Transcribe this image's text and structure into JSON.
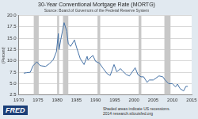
{
  "chart_data": {
    "type": "line",
    "title": "30-Year Conventional Mortgage Rate (MORTG)",
    "subtitle": "Source: Board of Governors of the Federal Reserve System",
    "y_label": "(Percent)",
    "annotations": [
      "FRED",
      "Shaded areas indicate US recessions.",
      "2014 research.stlouisfed.org"
    ],
    "x": [
      1971.3,
      1972.0,
      1973.0,
      1973.7,
      1974.7,
      1975.5,
      1976.0,
      1977.0,
      1978.0,
      1979.0,
      1979.8,
      1980.3,
      1980.5,
      1980.9,
      1981.8,
      1982.5,
      1982.9,
      1983.5,
      1984.5,
      1985.0,
      1986.0,
      1987.0,
      1987.8,
      1988.0,
      1989.3,
      1990.0,
      1991.0,
      1992.0,
      1993.0,
      1993.8,
      1994.8,
      1995.5,
      1996.5,
      1997.0,
      1998.0,
      1998.8,
      2000.3,
      2001.0,
      2001.8,
      2002.5,
      2003.4,
      2004.0,
      2005.0,
      2006.5,
      2007.5,
      2008.0,
      2009.0,
      2010.0,
      2010.8,
      2011.3,
      2012.0,
      2012.9,
      2013.5,
      2014.0
    ],
    "values": [
      7.3,
      7.4,
      7.5,
      8.9,
      9.8,
      9.0,
      8.9,
      8.8,
      9.4,
      10.3,
      12.0,
      16.0,
      12.5,
      14.5,
      18.4,
      16.5,
      13.7,
      13.2,
      14.6,
      13.1,
      10.5,
      9.2,
      11.0,
      10.2,
      11.2,
      9.9,
      9.5,
      8.3,
      7.2,
      6.8,
      9.2,
      7.6,
      8.3,
      7.8,
      7.0,
      6.7,
      8.5,
      7.0,
      6.5,
      6.5,
      5.3,
      5.8,
      5.8,
      6.7,
      6.5,
      5.9,
      5.0,
      5.0,
      4.3,
      4.9,
      3.9,
      3.4,
      4.4,
      4.4
    ],
    "recessions": [
      [
        1973.9,
        1975.2
      ],
      [
        1980.0,
        1980.5
      ],
      [
        1981.5,
        1982.9
      ],
      [
        1990.5,
        1991.2
      ],
      [
        2001.2,
        2001.9
      ],
      [
        2007.9,
        2009.5
      ]
    ],
    "color": "#4572a7",
    "xlim": [
      1970,
      2015
    ],
    "xticks": [
      1970,
      1975,
      1980,
      1985,
      1990,
      1995,
      2000,
      2005,
      2010,
      2015
    ],
    "ylim": [
      2.5,
      20
    ],
    "yticks": [
      2.5,
      {
        "value": 5,
        "label": "5.0"
      },
      7.5,
      {
        "value": 10,
        "label": "10.0"
      },
      12.5,
      {
        "value": 15,
        "label": "15.0"
      },
      17.5,
      {
        "value": 20,
        "label": "20.0"
      }
    ],
    "grid": true
  }
}
